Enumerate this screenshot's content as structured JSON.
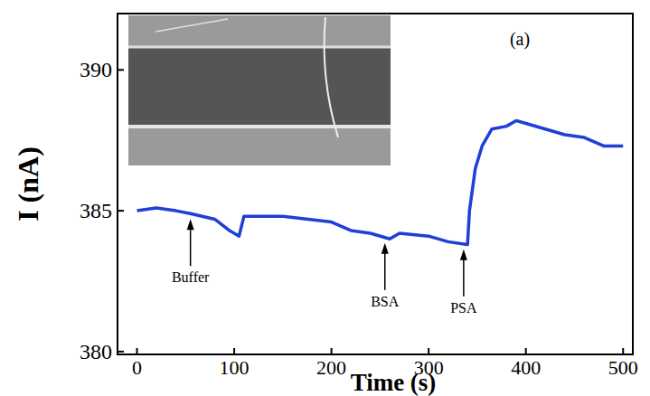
{
  "chart_data": {
    "type": "line",
    "panel_label": "(a)",
    "x_label": "Time (s)",
    "y_label": "I (nA)",
    "x": [
      0,
      20,
      40,
      55,
      80,
      95,
      105,
      110,
      150,
      200,
      220,
      240,
      260,
      270,
      300,
      320,
      340,
      342,
      348,
      355,
      365,
      380,
      390,
      400,
      420,
      440,
      460,
      480,
      500
    ],
    "series": [
      {
        "name": "I",
        "color": "#1f3fd6",
        "line_style": "solid",
        "values": [
          385.0,
          385.1,
          385.0,
          384.9,
          384.7,
          384.3,
          384.1,
          384.8,
          384.8,
          384.6,
          384.3,
          384.2,
          384.0,
          384.2,
          384.1,
          383.9,
          383.8,
          385.0,
          386.5,
          387.3,
          387.9,
          388.0,
          388.2,
          388.1,
          387.9,
          387.7,
          387.6,
          387.3,
          387.3
        ]
      }
    ],
    "annotations": [
      {
        "text": "Buffer",
        "x": 55
      },
      {
        "text": "BSA",
        "x": 255
      },
      {
        "text": "PSA",
        "x": 336
      }
    ],
    "xlim": [
      -20,
      510
    ],
    "xticks": [
      0,
      100,
      200,
      300,
      400,
      500
    ],
    "ylim": [
      379.9,
      392
    ],
    "yticks": [
      380,
      385,
      390
    ],
    "grid": false
  }
}
